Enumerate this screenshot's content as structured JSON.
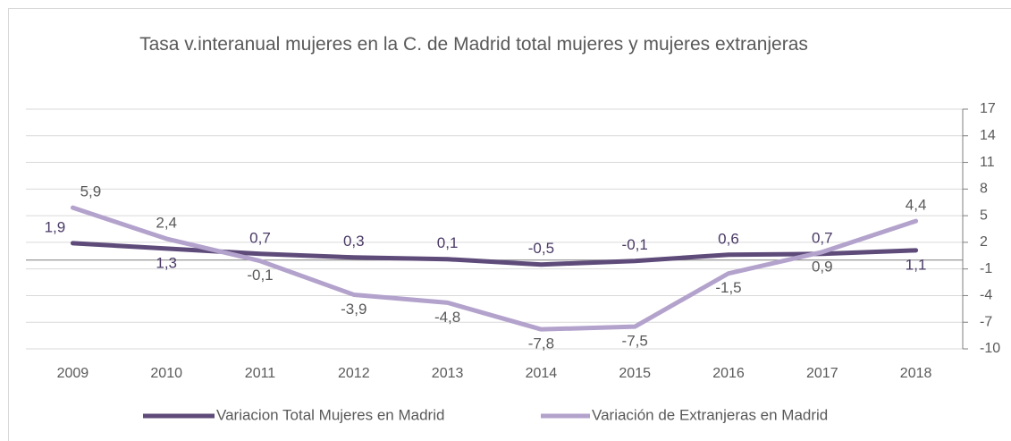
{
  "chart_data": {
    "type": "line",
    "title": "Tasa v.interanual mujeres en la C. de Madrid total mujeres y mujeres extranjeras",
    "categories": [
      "2009",
      "2010",
      "2011",
      "2012",
      "2013",
      "2014",
      "2015",
      "2016",
      "2017",
      "2018"
    ],
    "series": [
      {
        "name": "Variacion Total Mujeres en Madrid",
        "color": "#5e4b7a",
        "values": [
          1.9,
          1.3,
          0.7,
          0.3,
          0.1,
          -0.5,
          -0.1,
          0.6,
          0.7,
          1.1
        ],
        "value_labels": [
          "1,9",
          "1,3",
          "0,7",
          "0,3",
          "0,1",
          "-0,5",
          "-0,1",
          "0,6",
          "0,7",
          "1,1"
        ]
      },
      {
        "name": "Variación de Extranjeras en Madrid",
        "color": "#b3a2cc",
        "values": [
          5.9,
          2.4,
          -0.1,
          -3.9,
          -4.8,
          -7.8,
          -7.5,
          -1.5,
          0.9,
          4.4
        ],
        "value_labels": [
          "5,9",
          "2,4",
          "-0,1",
          "-3,9",
          "-4,8",
          "-7,8",
          "-7,5",
          "-1,5",
          "0,9",
          "4,4"
        ]
      }
    ],
    "ylim": [
      -10,
      17
    ],
    "yticks": [
      17,
      14,
      11,
      8,
      5,
      2,
      -1,
      -4,
      -7,
      -10
    ],
    "grid": true,
    "legend": "bottom"
  }
}
